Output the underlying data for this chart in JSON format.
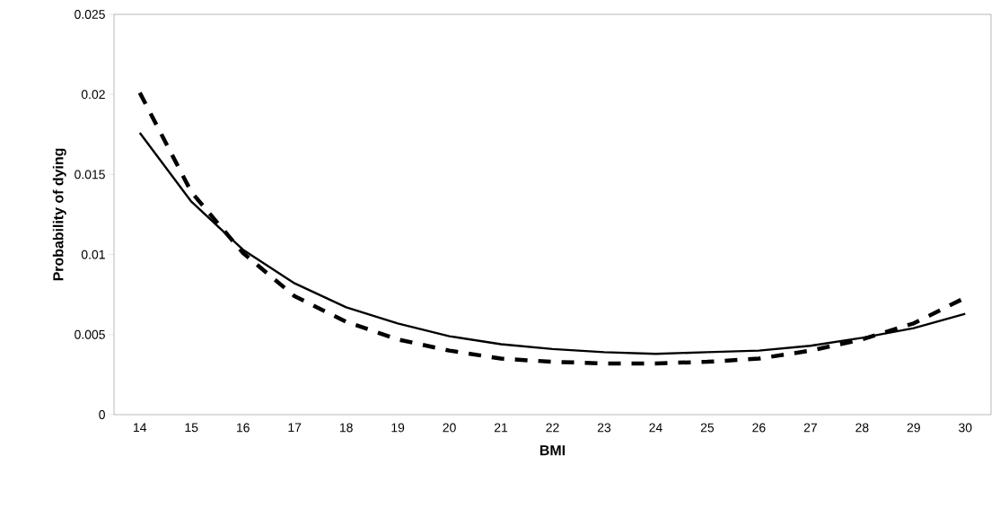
{
  "chart_data": {
    "type": "line",
    "xlabel": "BMI",
    "ylabel": "Probability of dying",
    "categories": [
      "14",
      "15",
      "16",
      "17",
      "18",
      "19",
      "20",
      "21",
      "22",
      "23",
      "24",
      "25",
      "26",
      "27",
      "28",
      "29",
      "30"
    ],
    "series": [
      {
        "color": "#000000",
        "line_style": "solid",
        "values": [
          0.0176,
          0.0133,
          0.0103,
          0.0082,
          0.0067,
          0.0057,
          0.0049,
          0.0044,
          0.0041,
          0.0039,
          0.0038,
          0.0039,
          0.004,
          0.0043,
          0.0048,
          0.0054,
          0.0063
        ]
      },
      {
        "color": "#000000",
        "line_style": "dashed",
        "values": [
          0.0201,
          0.0139,
          0.0101,
          0.0074,
          0.0058,
          0.0047,
          0.004,
          0.0035,
          0.0033,
          0.0032,
          0.0032,
          0.0033,
          0.0035,
          0.004,
          0.0047,
          0.0057,
          0.0073
        ]
      }
    ],
    "ylim": [
      0,
      0.025
    ],
    "yticks": [
      0,
      0.005,
      0.01,
      0.015,
      0.02,
      0.025
    ],
    "grid": false
  }
}
